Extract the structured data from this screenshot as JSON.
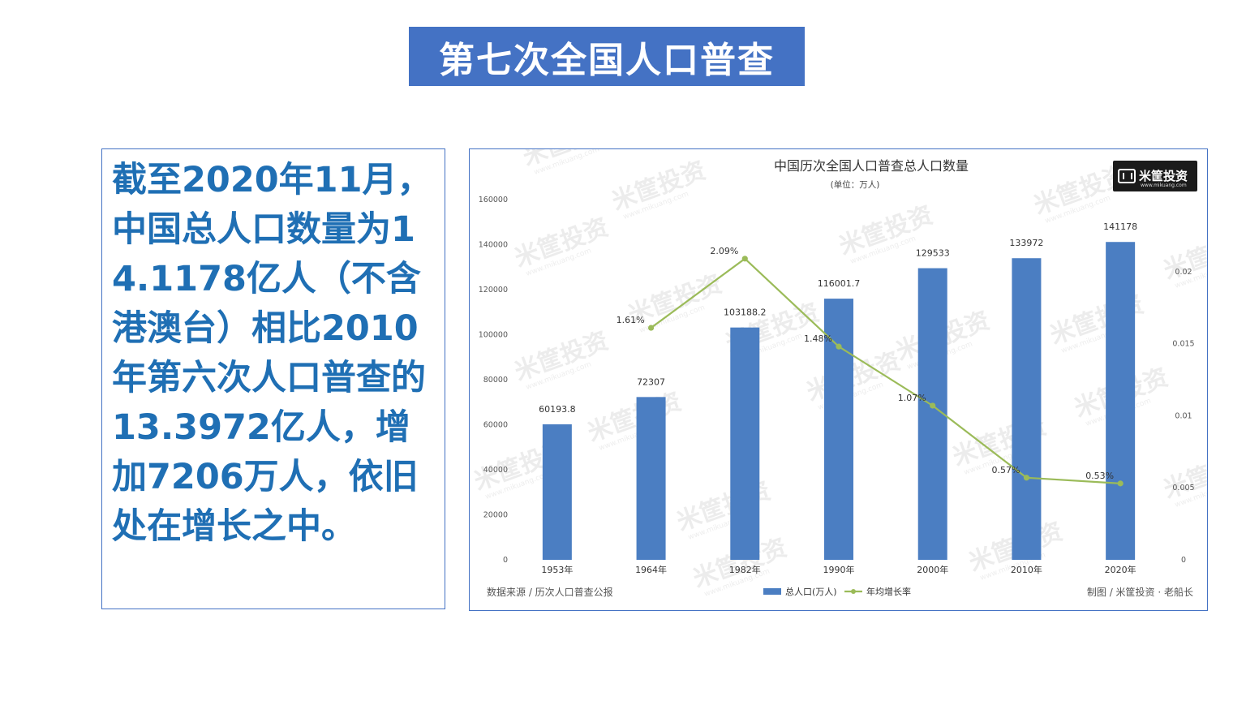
{
  "slide": {
    "title": "第七次全国人口普查",
    "body": "截至2020年11月，中国总人口数量为14.1178亿人（不含港澳台）相比2010年第六次人口普查的13.3972亿人，增加7206万人，依旧处在增长之中。"
  },
  "colors": {
    "banner": "#4472c4",
    "body_text": "#1f6fb4",
    "bar": "#4b7ec2",
    "line": "#9bbb59"
  },
  "chart_data": {
    "type": "bar",
    "title": "中国历次全国人口普查总人口数量",
    "subtitle": "(单位：万人)",
    "categories": [
      "1953年",
      "1964年",
      "1982年",
      "1990年",
      "2000年",
      "2010年",
      "2020年"
    ],
    "series": [
      {
        "name": "总人口(万人)",
        "type": "bar",
        "axis": "left",
        "values": [
          60193.8,
          72307,
          103188.2,
          116001.7,
          129533,
          133972,
          141178
        ],
        "labels": [
          "60193.8",
          "72307",
          "103188.2",
          "116001.7",
          "129533",
          "133972",
          "141178"
        ]
      },
      {
        "name": "年均增长率",
        "type": "line",
        "axis": "right",
        "values": [
          null,
          0.0161,
          0.0209,
          0.0148,
          0.0107,
          0.0057,
          0.0053
        ],
        "labels": [
          "",
          "1.61%",
          "2.09%",
          "1.48%",
          "1.07%",
          "0.57%",
          "0.53%"
        ]
      }
    ],
    "y_left": {
      "min": 0,
      "max": 160000,
      "ticks": [
        "0",
        "20000",
        "40000",
        "60000",
        "80000",
        "100000",
        "120000",
        "140000",
        "160000"
      ]
    },
    "y_right": {
      "min": 0,
      "max": 0.025,
      "ticks": [
        "0",
        "0.005",
        "0.01",
        "0.015",
        "0.02"
      ]
    },
    "legend": {
      "position": "bottom-center",
      "items": [
        "总人口(万人)",
        "年均增长率"
      ]
    },
    "grid": false,
    "source_note": "数据来源 / 历次人口普查公报",
    "credit_note": "制图 / 米筐投资 · 老船长"
  },
  "watermark": {
    "brand": "米筐投资",
    "url": "www.mikuang.com"
  },
  "logo": {
    "text": "米筐投资",
    "url": "www.mikuang.com"
  }
}
